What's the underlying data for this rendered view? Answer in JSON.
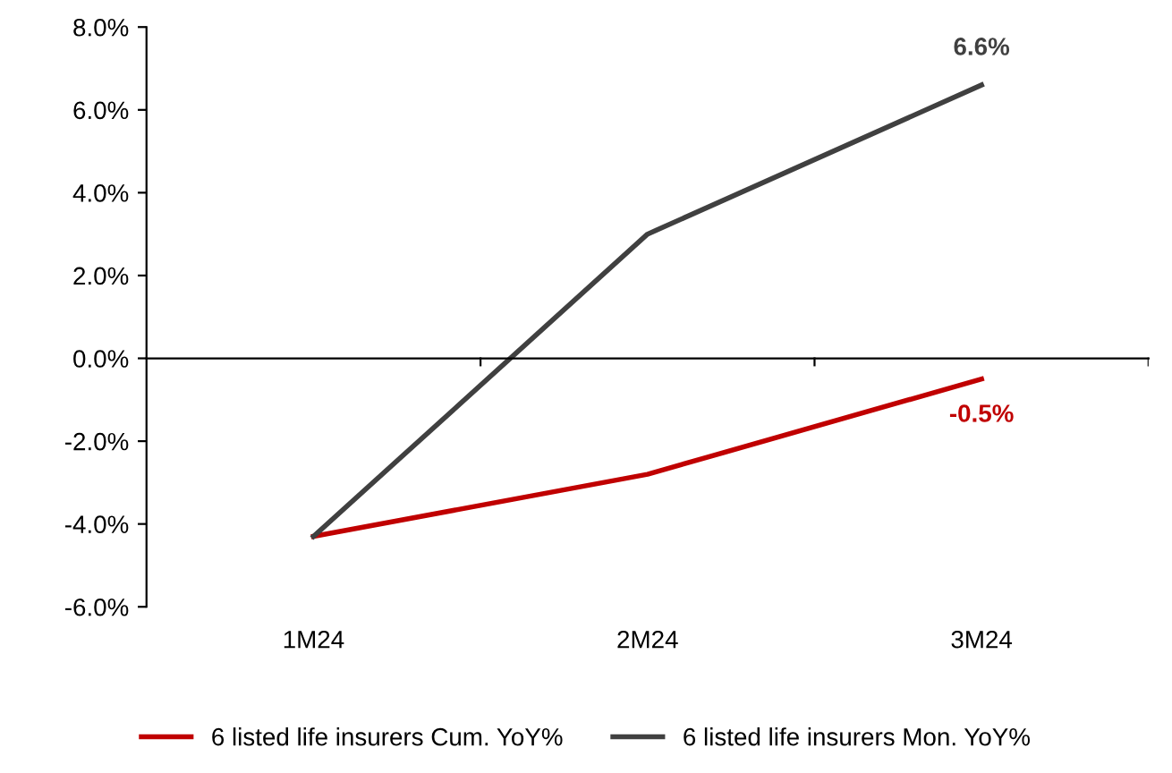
{
  "chart_data": {
    "type": "line",
    "categories": [
      "1M24",
      "2M24",
      "3M24"
    ],
    "series": [
      {
        "name": "6 listed life insurers Cum. YoY%",
        "color": "#c00000",
        "values": [
          -4.3,
          -2.8,
          -0.5
        ],
        "value_labels": [
          null,
          null,
          "-0.5%"
        ]
      },
      {
        "name": "6 listed life insurers Mon. YoY%",
        "color": "#404040",
        "values": [
          -4.3,
          3.0,
          6.6
        ],
        "value_labels": [
          null,
          null,
          "6.6%"
        ]
      }
    ],
    "ylim": [
      -6,
      8
    ],
    "yticks": [
      {
        "value": -6,
        "label": "-6.0%"
      },
      {
        "value": -4,
        "label": "-4.0%"
      },
      {
        "value": -2,
        "label": "-2.0%"
      },
      {
        "value": 0,
        "label": "0.0%"
      },
      {
        "value": 2,
        "label": "2.0%"
      },
      {
        "value": 4,
        "label": "4.0%"
      },
      {
        "value": 6,
        "label": "6.0%"
      },
      {
        "value": 8,
        "label": "8.0%"
      }
    ],
    "legend": "bottom",
    "line_style": "solid"
  }
}
